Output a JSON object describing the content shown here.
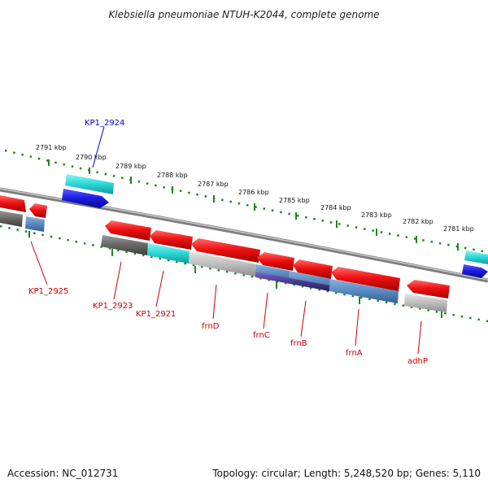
{
  "title": "Klebsiella pneumoniae NTUH-K2044, complete genome",
  "accession": "Accession: NC_012731",
  "topology": "Topology: circular; Length: 5,248,520 bp; Genes: 5,110",
  "ruler_labels": [
    "2791 kbp",
    "2790 kbp",
    "2789 kbp",
    "2788 kbp",
    "2787 kbp",
    "2786 kbp",
    "2785 kbp",
    "2784 kbp",
    "2783 kbp",
    "2782 kbp",
    "2781 kbp"
  ],
  "gene_labels": {
    "kp1_2924": "KP1_2924",
    "kp1_2925": "KP1_2925",
    "kp1_2923": "KP1_2923",
    "kp1_2921": "KP1_2921",
    "frnD": "frnD",
    "frnC": "frnC",
    "frnB": "frnB",
    "frnA": "frnA",
    "adhP": "adhP"
  },
  "colors": {
    "backbone": "#8a8a8a",
    "ruler_ticks": "#1a8a1a",
    "label_red": "#cc0000",
    "label_blue": "#0000cc",
    "feature_red": "#ee1111",
    "feature_blue": "#1a1adf",
    "feature_cyan": "#2ad6d6",
    "feature_steelblue": "#5a88c0",
    "feature_purple": "#4a3a90",
    "feature_darkgray": "#666666",
    "feature_lightgray": "#bdbdbd"
  }
}
